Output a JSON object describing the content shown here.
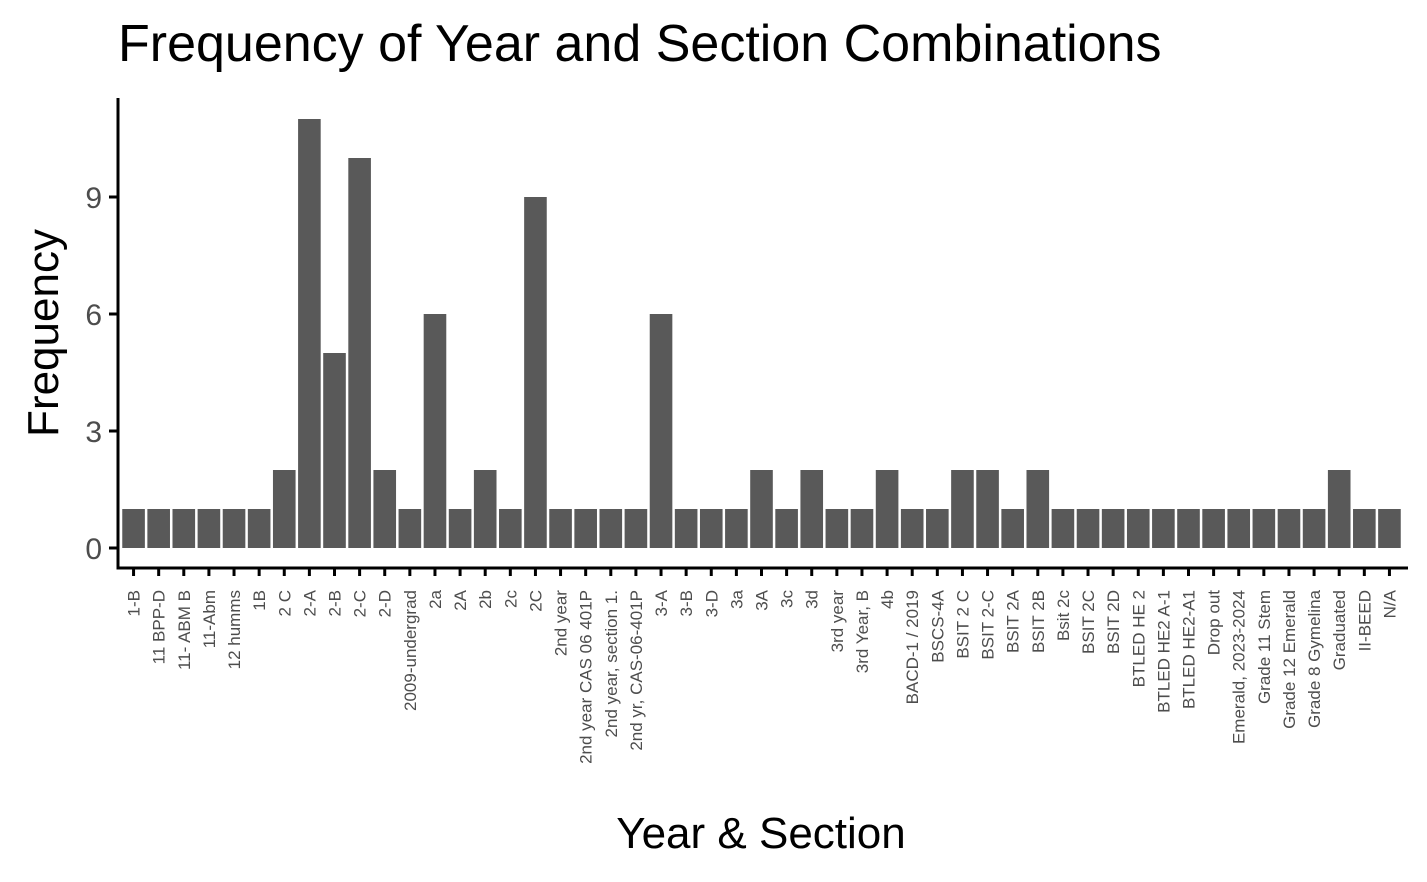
{
  "chart_data": {
    "type": "bar",
    "title": "Frequency of Year and Section Combinations",
    "xlabel": "Year & Section",
    "ylabel": "Frequency",
    "ylim": [
      0,
      11
    ],
    "yticks": [
      0,
      3,
      6,
      9
    ],
    "grid": false,
    "bar_color": "#595959",
    "categories": [
      "1-B",
      "11 BPP-D",
      "11- ABM B",
      "11-Abm",
      "12 humms",
      "1B",
      "2 C",
      "2-A",
      "2-B",
      "2-C",
      "2-D",
      "2009-undergrad",
      "2a",
      "2A",
      "2b",
      "2c",
      "2C",
      "2nd year",
      "2nd year CAS 06 401P",
      "2nd year, section 1.",
      "2nd yr, CAS-06-401P",
      "3-A",
      "3-B",
      "3-D",
      "3a",
      "3A",
      "3c",
      "3d",
      "3rd year",
      "3rd Year, B",
      "4b",
      "BACD-1 / 2019",
      "BSCS-4A",
      "BSIT 2 C",
      "BSIT 2-C",
      "BSIT 2A",
      "BSIT 2B",
      "Bsit 2c",
      "BSIT 2C",
      "BSIT 2D",
      "BTLED HE 2",
      "BTLED HE2 A-1",
      "BTLED HE2-A1",
      "Drop out",
      "Emerald, 2023-2024",
      "Grade 11 Stem",
      "Grade 12 Emerald",
      "Grade 8 Gymelina",
      "Graduated",
      "II-BEED",
      "N/A"
    ],
    "values": [
      1,
      1,
      1,
      1,
      1,
      1,
      2,
      11,
      5,
      10,
      2,
      1,
      6,
      1,
      2,
      1,
      9,
      1,
      1,
      1,
      1,
      6,
      1,
      1,
      1,
      2,
      1,
      2,
      1,
      1,
      2,
      1,
      1,
      2,
      2,
      1,
      2,
      1,
      1,
      1,
      1,
      1,
      1,
      1,
      1,
      1,
      1,
      1,
      2,
      1,
      1
    ]
  }
}
